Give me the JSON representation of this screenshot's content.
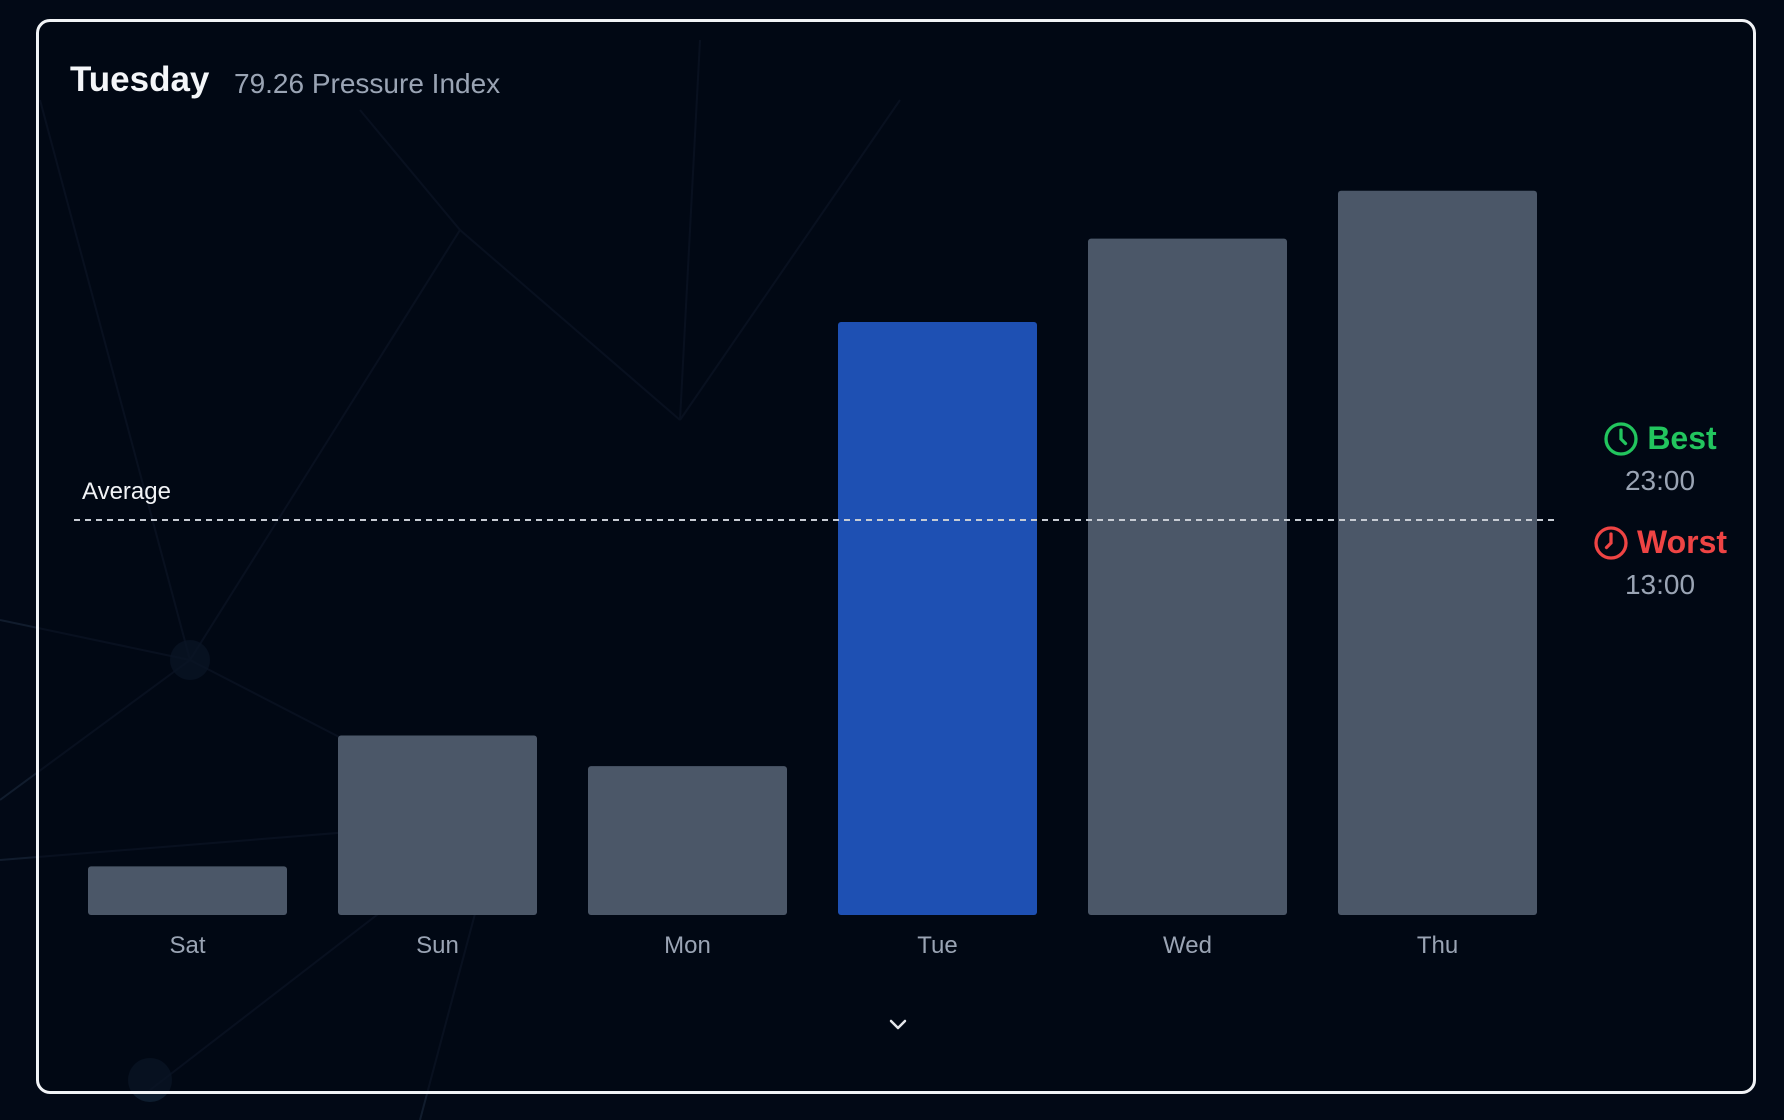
{
  "header": {
    "title": "Tuesday",
    "subtitle": "79.26 Pressure Index"
  },
  "legend": {
    "best": {
      "label": "Best",
      "time": "23:00",
      "color": "#22c55e",
      "icon": "clock-icon"
    },
    "worst": {
      "label": "Worst",
      "time": "13:00",
      "color": "#ef4444",
      "icon": "clock-icon"
    }
  },
  "expand_icon": "chevron-down-icon",
  "chart_data": {
    "type": "bar",
    "categories": [
      "Sat",
      "Sun",
      "Mon",
      "Tue",
      "Wed",
      "Thu"
    ],
    "values": [
      6.5,
      24.0,
      19.9,
      79.26,
      90.4,
      96.8
    ],
    "highlighted": "Tue",
    "average": {
      "label": "Average",
      "value": 52.8
    },
    "colors": {
      "bar": "#4b5768",
      "highlight": "#1e50b3",
      "average_line": "#c7ccd4"
    },
    "grid": false
  }
}
